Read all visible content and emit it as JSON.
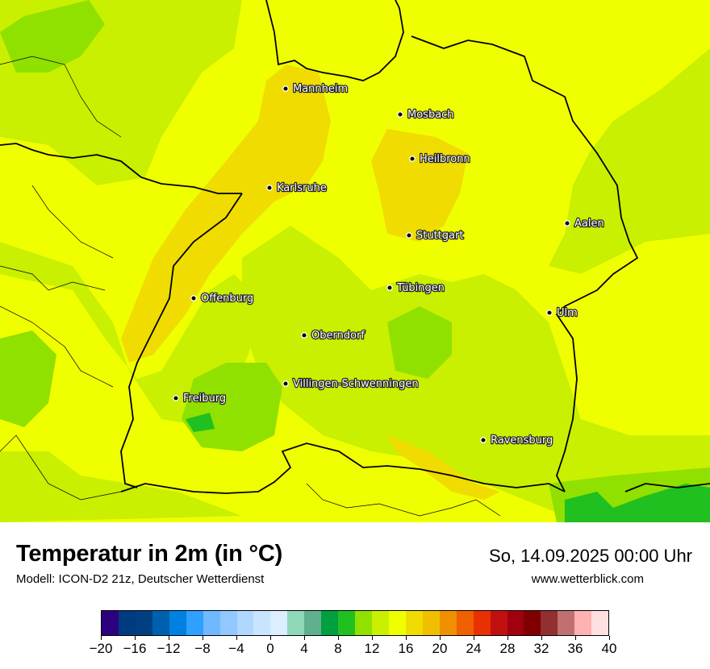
{
  "header": {
    "title": "Temperatur in 2m (in °C)",
    "model": "Modell: ICON-D2 21z, Deutscher Wetterdienst",
    "datetime": "So, 14.09.2025 00:00 Uhr",
    "website": "www.wetterblick.com"
  },
  "cities": [
    {
      "name": "Mannheim"
    },
    {
      "name": "Mosbach"
    },
    {
      "name": "Heilbronn"
    },
    {
      "name": "Karlsruhe"
    },
    {
      "name": "Aalen"
    },
    {
      "name": "Stuttgart"
    },
    {
      "name": "Tübingen"
    },
    {
      "name": "Offenburg"
    },
    {
      "name": "Ulm"
    },
    {
      "name": "Oberndorf"
    },
    {
      "name": "Villingen-Schwenningen"
    },
    {
      "name": "Freiburg"
    },
    {
      "name": "Ravensburg"
    }
  ],
  "legend": {
    "colors": [
      "#2d0080",
      "#003a80",
      "#004080",
      "#0060b0",
      "#0080e0",
      "#2ea0ff",
      "#70b8ff",
      "#90c8ff",
      "#b0d8ff",
      "#c8e4ff",
      "#dceeff",
      "#8ed8b8",
      "#60b090",
      "#00a040",
      "#20c020",
      "#90e000",
      "#c8f000",
      "#f0ff00",
      "#f0dc00",
      "#f0c000",
      "#f09000",
      "#f06000",
      "#e83000",
      "#c01010",
      "#a00010",
      "#800000",
      "#903030",
      "#c07070",
      "#ffb0b0",
      "#ffe0e0"
    ],
    "ticks": [
      "−20",
      "−16",
      "−12",
      "−8",
      "−4",
      "0",
      "4",
      "8",
      "12",
      "16",
      "20",
      "24",
      "28",
      "32",
      "36",
      "40"
    ]
  }
}
